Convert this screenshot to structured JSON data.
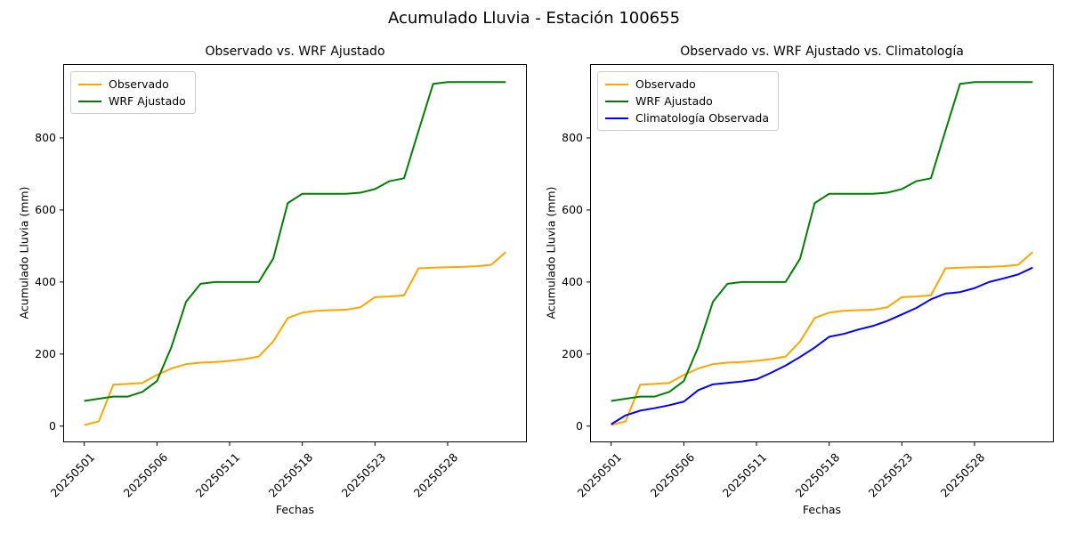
{
  "figure": {
    "suptitle": "Acumulado Lluvia - Estación 100655",
    "background_color": "#ffffff",
    "text_color": "#000000",
    "spine_color": "#000000"
  },
  "chart_data": [
    {
      "type": "line",
      "title": "Observado vs. WRF Ajustado",
      "xlabel": "Fechas",
      "ylabel": "Acumulado Lluvia (mm)",
      "grid": false,
      "legend_position": "upper-left",
      "xlim": [
        -1.45,
        30.45
      ],
      "ylim": [
        -45,
        1005
      ],
      "yticks": [
        0,
        200,
        400,
        600,
        800
      ],
      "x_tick_indices": [
        0,
        5,
        10,
        15,
        20,
        25
      ],
      "x_tick_labels": [
        "20250501",
        "20250506",
        "20250511",
        "20250518",
        "20250523",
        "20250528"
      ],
      "x_tick_rotation": 45,
      "series": [
        {
          "name": "Observado",
          "color": "#FFA500",
          "values": [
            3,
            13,
            115,
            117,
            120,
            142,
            160,
            172,
            176,
            178,
            181,
            186,
            193,
            235,
            300,
            315,
            320,
            322,
            323,
            330,
            358,
            360,
            363,
            438,
            440,
            441,
            442,
            444,
            448,
            483
          ]
        },
        {
          "name": "WRF Ajustado",
          "color": "#008000",
          "values": [
            70,
            76,
            82,
            82,
            95,
            125,
            220,
            345,
            395,
            400,
            400,
            400,
            400,
            465,
            619,
            645,
            645,
            645,
            645,
            648,
            658,
            680,
            688,
            820,
            950,
            955,
            955,
            955,
            955,
            955
          ]
        }
      ]
    },
    {
      "type": "line",
      "title": "Observado vs. WRF Ajustado vs. Climatología",
      "xlabel": "Fechas",
      "ylabel": "Acumulado Lluvia (mm)",
      "grid": false,
      "legend_position": "upper-left",
      "xlim": [
        -1.45,
        30.45
      ],
      "ylim": [
        -45,
        1005
      ],
      "yticks": [
        0,
        200,
        400,
        600,
        800
      ],
      "x_tick_indices": [
        0,
        5,
        10,
        15,
        20,
        25
      ],
      "x_tick_labels": [
        "20250501",
        "20250506",
        "20250511",
        "20250518",
        "20250523",
        "20250528"
      ],
      "x_tick_rotation": 45,
      "series": [
        {
          "name": "Observado",
          "color": "#FFA500",
          "values": [
            3,
            13,
            115,
            117,
            120,
            142,
            160,
            172,
            176,
            178,
            181,
            186,
            193,
            235,
            300,
            315,
            320,
            322,
            323,
            330,
            358,
            360,
            363,
            438,
            440,
            441,
            442,
            444,
            448,
            483
          ]
        },
        {
          "name": "WRF Ajustado",
          "color": "#008000",
          "values": [
            70,
            76,
            82,
            82,
            95,
            125,
            220,
            345,
            395,
            400,
            400,
            400,
            400,
            465,
            619,
            645,
            645,
            645,
            645,
            648,
            658,
            680,
            688,
            820,
            950,
            955,
            955,
            955,
            955,
            955
          ]
        },
        {
          "name": "Climatología Observada",
          "color": "#0000FF",
          "values": [
            5,
            30,
            43,
            50,
            58,
            68,
            100,
            116,
            120,
            124,
            130,
            148,
            168,
            192,
            218,
            248,
            256,
            268,
            278,
            292,
            310,
            328,
            352,
            368,
            372,
            383,
            400,
            410,
            421,
            440
          ]
        }
      ]
    }
  ]
}
